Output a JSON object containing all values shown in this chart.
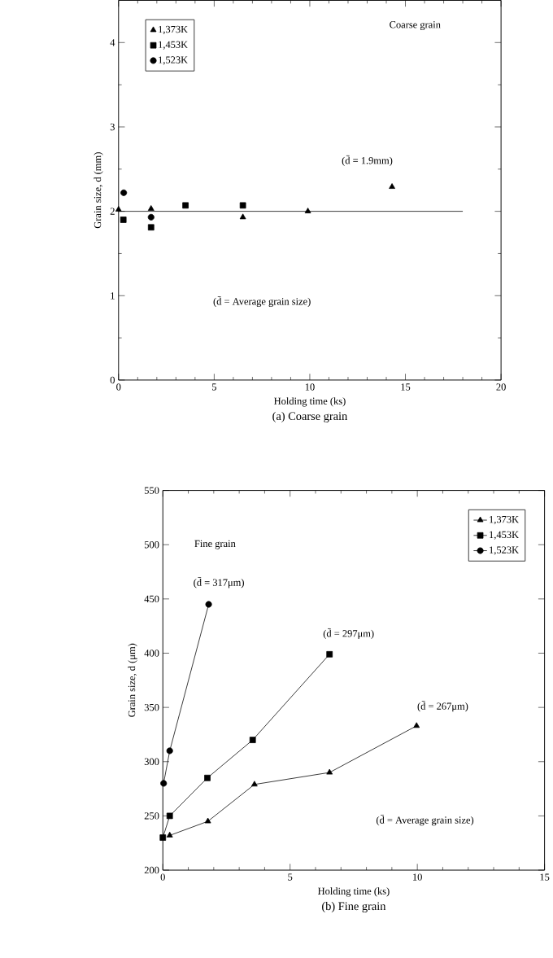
{
  "chart_data": [
    {
      "type": "scatter",
      "title": "(a) Coarse grain",
      "xlabel": "Holding time (ks)",
      "ylabel": "Grain size, d (mm)",
      "xlim": [
        0,
        20
      ],
      "ylim": [
        0,
        4.5
      ],
      "xticks": [
        0,
        5,
        10,
        15,
        20
      ],
      "yticks": [
        0,
        1,
        2,
        3,
        4
      ],
      "legend": "top left",
      "annotations": [
        "Coarse grain",
        "(d̄ = 1.9mm)",
        "(d̄ = Average grain size)"
      ],
      "series": [
        {
          "name": "1,373K",
          "color": "#000000",
          "marker": "triangle",
          "x": [
            0,
            1.7,
            6.5,
            9.9,
            14.3
          ],
          "values": [
            2.02,
            2.03,
            1.93,
            2.0,
            2.29
          ]
        },
        {
          "name": "1,453K",
          "color": "#000000",
          "marker": "square",
          "x": [
            0.25,
            1.7,
            3.5,
            6.5
          ],
          "values": [
            1.9,
            1.81,
            2.07,
            2.07
          ]
        },
        {
          "name": "1,523K",
          "color": "#000000",
          "marker": "circle",
          "x": [
            0.27,
            1.7
          ],
          "values": [
            2.22,
            1.93
          ]
        },
        {
          "type": "line",
          "color": "#000000",
          "marker": "none",
          "x": [
            0,
            18
          ],
          "values": [
            2.0,
            2.0
          ]
        }
      ]
    },
    {
      "type": "line",
      "title": "(b) Fine grain",
      "xlabel": "Holding time (ks)",
      "ylabel": "Grain size, d (μm)",
      "xlim": [
        0,
        15
      ],
      "ylim": [
        200,
        550
      ],
      "xticks": [
        0,
        5,
        10,
        15
      ],
      "yticks": [
        200,
        250,
        300,
        350,
        400,
        450,
        500,
        550
      ],
      "legend": "top right",
      "annotations": [
        "Fine grain",
        "(d̄ = 317μm)",
        "(d̄ = 297μm)",
        "(d̄ = 267μm)",
        "(d̄ = Average grain size)"
      ],
      "series": [
        {
          "name": "1,373K",
          "color": "#000000",
          "marker": "triangle",
          "x": [
            0.27,
            1.77,
            3.6,
            6.55,
            9.97
          ],
          "values": [
            232,
            245,
            279,
            290,
            333
          ]
        },
        {
          "name": "1,453K",
          "color": "#000000",
          "marker": "square",
          "x": [
            0,
            0.27,
            1.75,
            3.53,
            6.55
          ],
          "values": [
            230,
            250,
            285,
            320,
            399
          ]
        },
        {
          "name": "1,523K",
          "color": "#000000",
          "marker": "circle",
          "x": [
            0.03,
            0.27,
            1.8
          ],
          "values": [
            280,
            310,
            445
          ]
        }
      ]
    }
  ]
}
